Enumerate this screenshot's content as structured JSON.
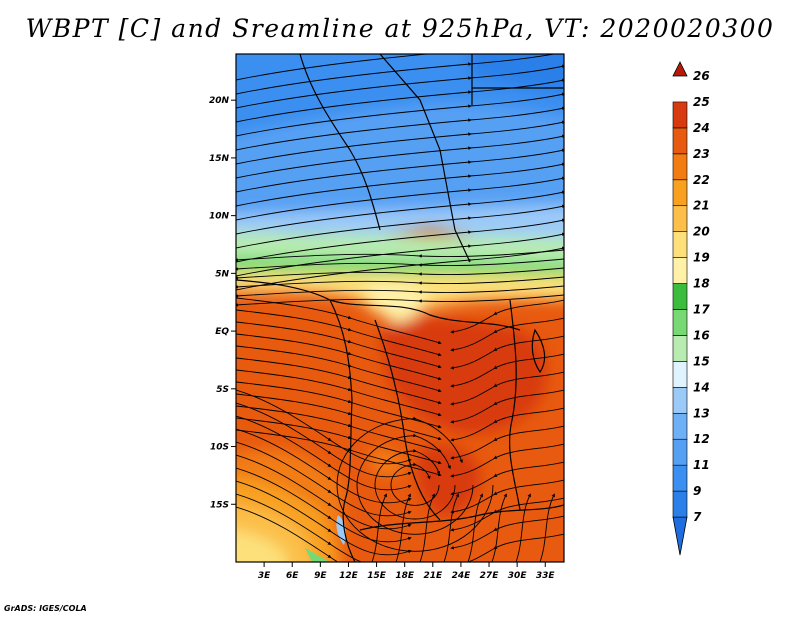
{
  "title": "WBPT [C] and Sreamline at 925hPa, VT: 2020020300",
  "footer": "GrADS: IGES/COLA",
  "chart_data": {
    "type": "heatmap",
    "variable": "Wet-bulb potential temperature",
    "units": "C",
    "level": "925hPa",
    "valid_time": "2020020300",
    "overlay": "streamlines",
    "x_range": [
      0,
      35
    ],
    "y_range": [
      -20,
      24
    ],
    "lat_ticks": [
      {
        "value": 20,
        "label": "20N"
      },
      {
        "value": 15,
        "label": "15N"
      },
      {
        "value": 10,
        "label": "10N"
      },
      {
        "value": 5,
        "label": "5N"
      },
      {
        "value": 0,
        "label": "EQ"
      },
      {
        "value": -5,
        "label": "5S"
      },
      {
        "value": -10,
        "label": "10S"
      },
      {
        "value": -15,
        "label": "15S"
      }
    ],
    "lon_ticks": [
      {
        "value": 3,
        "label": "3E"
      },
      {
        "value": 6,
        "label": "6E"
      },
      {
        "value": 9,
        "label": "9E"
      },
      {
        "value": 12,
        "label": "12E"
      },
      {
        "value": 15,
        "label": "15E"
      },
      {
        "value": 18,
        "label": "18E"
      },
      {
        "value": 21,
        "label": "21E"
      },
      {
        "value": 24,
        "label": "24E"
      },
      {
        "value": 27,
        "label": "27E"
      },
      {
        "value": 30,
        "label": "30E"
      },
      {
        "value": 33,
        "label": "33E"
      }
    ],
    "colorbar": [
      {
        "label": "7",
        "color": "#1e6ee0"
      },
      {
        "label": "9",
        "color": "#2a80e8"
      },
      {
        "label": "11",
        "color": "#3a8ff0"
      },
      {
        "label": "12",
        "color": "#56a0f4"
      },
      {
        "label": "13",
        "color": "#6eb0f6"
      },
      {
        "label": "14",
        "color": "#9ccaf8"
      },
      {
        "label": "15",
        "color": "#e0f4ff"
      },
      {
        "label": "16",
        "color": "#b8ecb0"
      },
      {
        "label": "17",
        "color": "#78d873"
      },
      {
        "label": "18",
        "color": "#3cbc3c"
      },
      {
        "label": "19",
        "color": "#fff1a8"
      },
      {
        "label": "20",
        "color": "#fde07a"
      },
      {
        "label": "21",
        "color": "#fbbf4a"
      },
      {
        "label": "22",
        "color": "#f8a020"
      },
      {
        "label": "23",
        "color": "#f27c12"
      },
      {
        "label": "24",
        "color": "#e85a10"
      },
      {
        "label": "25",
        "color": "#d83a10"
      },
      {
        "label": "26",
        "color": "#b81808"
      }
    ]
  }
}
